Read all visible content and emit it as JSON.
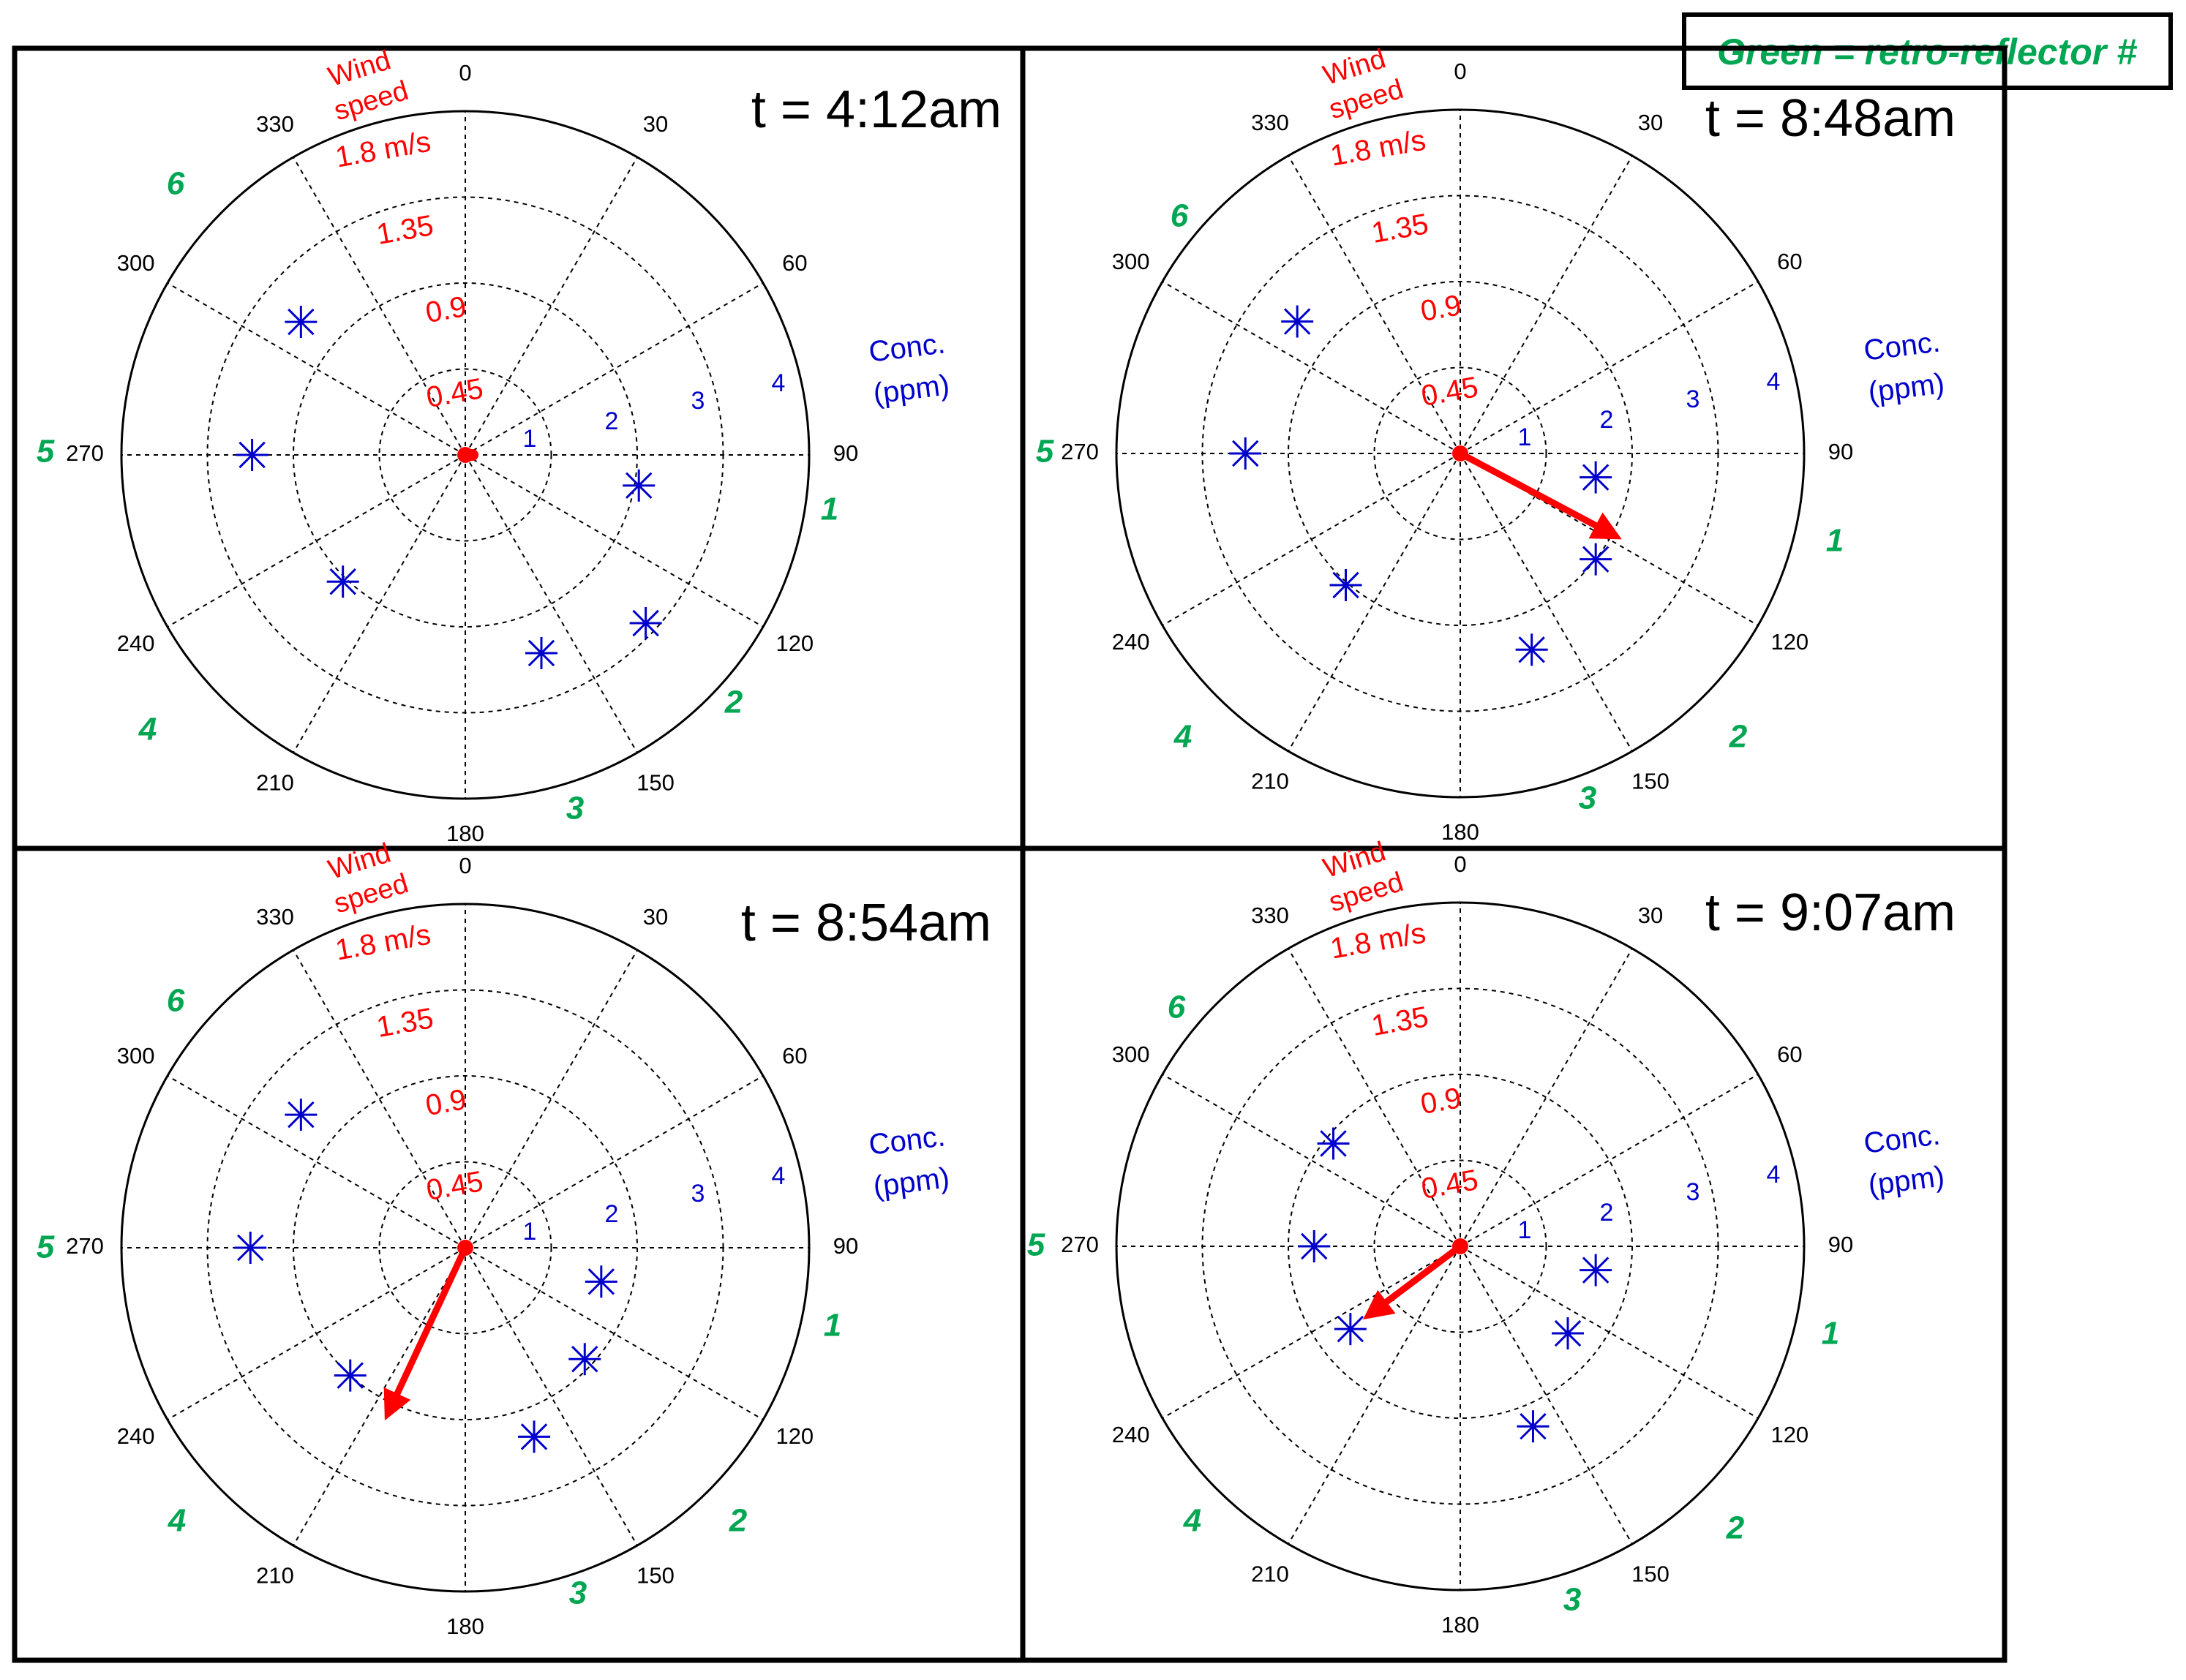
{
  "legend_box": {
    "text": "Green = retro-reflector #",
    "color": "#00a651"
  },
  "colors": {
    "wind": "#ff0000",
    "conc": "#0000cc",
    "reflector": "#00a651",
    "grid": "#000000"
  },
  "chart_data": [
    {
      "type": "polar",
      "time_label": "t = 4:12am",
      "angle_ticks": [
        "0",
        "30",
        "60",
        "90",
        "120",
        "150",
        "180",
        "210",
        "240",
        "270",
        "300",
        "330"
      ],
      "wind_speed_label": [
        "Wind",
        "speed"
      ],
      "wind_speed_ticks": [
        "0.45",
        "0.9",
        "1.35",
        "1.8 m/s"
      ],
      "conc_label": [
        "Conc.",
        "(ppm)"
      ],
      "conc_ticks": [
        "1",
        "2",
        "3",
        "4"
      ],
      "reflector_labels": [
        "1",
        "2",
        "3",
        "4",
        "5",
        "6"
      ],
      "wind": {
        "direction_deg": 90,
        "speed_ms": 0.05
      },
      "concentrations": [
        {
          "direction_deg": 100,
          "conc_ppm": 2.05
        },
        {
          "direction_deg": 133,
          "conc_ppm": 2.87
        },
        {
          "direction_deg": 159,
          "conc_ppm": 2.47
        },
        {
          "direction_deg": 224,
          "conc_ppm": 2.05
        },
        {
          "direction_deg": 270,
          "conc_ppm": 2.48
        },
        {
          "direction_deg": 309,
          "conc_ppm": 2.46
        }
      ]
    },
    {
      "type": "polar",
      "time_label": "t = 8:48am",
      "angle_ticks": [
        "0",
        "30",
        "60",
        "90",
        "120",
        "150",
        "180",
        "210",
        "240",
        "270",
        "300",
        "330"
      ],
      "wind_speed_label": [
        "Wind",
        "speed"
      ],
      "wind_speed_ticks": [
        "0.45",
        "0.9",
        "1.35",
        "1.8 m/s"
      ],
      "conc_label": [
        "Conc.",
        "(ppm)"
      ],
      "conc_ticks": [
        "1",
        "2",
        "3",
        "4"
      ],
      "reflector_labels": [
        "1",
        "2",
        "3",
        "4",
        "5",
        "6"
      ],
      "wind": {
        "direction_deg": 118,
        "speed_ms": 0.88
      },
      "concentrations": [
        {
          "direction_deg": 100,
          "conc_ppm": 1.6
        },
        {
          "direction_deg": 128,
          "conc_ppm": 2.0
        },
        {
          "direction_deg": 160,
          "conc_ppm": 2.43
        },
        {
          "direction_deg": 221,
          "conc_ppm": 2.03
        },
        {
          "direction_deg": 270,
          "conc_ppm": 2.5
        },
        {
          "direction_deg": 309,
          "conc_ppm": 2.44
        }
      ]
    },
    {
      "type": "polar",
      "time_label": "t = 8:54am",
      "angle_ticks": [
        "0",
        "30",
        "60",
        "90",
        "120",
        "150",
        "180",
        "210",
        "240",
        "270",
        "300",
        "330"
      ],
      "wind_speed_label": [
        "Wind",
        "speed"
      ],
      "wind_speed_ticks": [
        "0.45",
        "0.9",
        "1.35",
        "1.8 m/s"
      ],
      "conc_label": [
        "Conc.",
        "(ppm)"
      ],
      "conc_ticks": [
        "1",
        "2",
        "3",
        "4"
      ],
      "reflector_labels": [
        "1",
        "2",
        "3",
        "4",
        "5",
        "6"
      ],
      "wind": {
        "direction_deg": 205,
        "speed_ms": 0.92
      },
      "concentrations": [
        {
          "direction_deg": 104,
          "conc_ppm": 1.63
        },
        {
          "direction_deg": 133,
          "conc_ppm": 1.9
        },
        {
          "direction_deg": 160,
          "conc_ppm": 2.34
        },
        {
          "direction_deg": 222,
          "conc_ppm": 2.0
        },
        {
          "direction_deg": 270,
          "conc_ppm": 2.5
        },
        {
          "direction_deg": 309,
          "conc_ppm": 2.46
        }
      ]
    },
    {
      "type": "polar",
      "time_label": "t = 9:07am",
      "angle_ticks": [
        "0",
        "30",
        "60",
        "90",
        "120",
        "150",
        "180",
        "210",
        "240",
        "270",
        "300",
        "330"
      ],
      "wind_speed_label": [
        "Wind",
        "speed"
      ],
      "wind_speed_ticks": [
        "0.45",
        "0.9",
        "1.35",
        "1.8 m/s"
      ],
      "conc_label": [
        "Conc.",
        "(ppm)"
      ],
      "conc_ticks": [
        "1",
        "2",
        "3",
        "4"
      ],
      "reflector_labels": [
        "1",
        "2",
        "3",
        "4",
        "5",
        "6"
      ],
      "wind": {
        "direction_deg": 233,
        "speed_ms": 0.56
      },
      "concentrations": [
        {
          "direction_deg": 100,
          "conc_ppm": 1.6
        },
        {
          "direction_deg": 129,
          "conc_ppm": 1.61
        },
        {
          "direction_deg": 158,
          "conc_ppm": 2.26
        },
        {
          "direction_deg": 233,
          "conc_ppm": 1.6
        },
        {
          "direction_deg": 270,
          "conc_ppm": 1.7
        },
        {
          "direction_deg": 309,
          "conc_ppm": 1.9
        }
      ]
    }
  ]
}
